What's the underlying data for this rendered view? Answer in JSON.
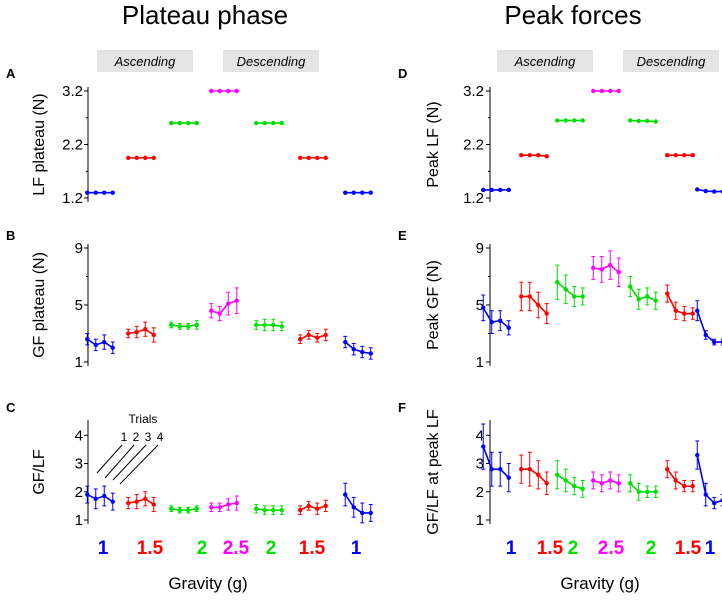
{
  "chart_data": {
    "type": "line",
    "titles": {
      "left": "Plateau phase",
      "right": "Peak forces"
    },
    "phase_labels": {
      "ascending": "Ascending",
      "descending": "Descending"
    },
    "gravity_levels": [
      "1",
      "1.5",
      "2",
      "2.5",
      "2",
      "1.5",
      "1"
    ],
    "gravity_colors": [
      "#0000ff",
      "#ff0000",
      "#00e000",
      "#ff00ff",
      "#00e000",
      "#ff0000",
      "#0000ff"
    ],
    "xlabel": "Gravity (g)",
    "trial_annotation": {
      "title": "Trials",
      "labels": [
        "1",
        "2",
        "3",
        "4"
      ]
    },
    "panels": [
      {
        "letter": "A",
        "ylabel": "LF plateau (N)",
        "ylim": [
          1.2,
          3.2
        ],
        "yticks": [
          "1.2",
          "2.2",
          "3.2"
        ],
        "groups": [
          {
            "mean": [
              1.3,
              1.3,
              1.3,
              1.3
            ],
            "err": [
              0,
              0,
              0,
              0
            ]
          },
          {
            "mean": [
              1.95,
              1.95,
              1.95,
              1.95
            ],
            "err": [
              0,
              0,
              0,
              0
            ]
          },
          {
            "mean": [
              2.6,
              2.6,
              2.6,
              2.6
            ],
            "err": [
              0,
              0,
              0,
              0
            ]
          },
          {
            "mean": [
              3.2,
              3.2,
              3.2,
              3.2
            ],
            "err": [
              0,
              0,
              0,
              0
            ]
          },
          {
            "mean": [
              2.6,
              2.6,
              2.6,
              2.6
            ],
            "err": [
              0,
              0,
              0,
              0
            ]
          },
          {
            "mean": [
              1.95,
              1.95,
              1.95,
              1.95
            ],
            "err": [
              0,
              0,
              0,
              0
            ]
          },
          {
            "mean": [
              1.3,
              1.3,
              1.3,
              1.3
            ],
            "err": [
              0,
              0,
              0,
              0
            ]
          }
        ]
      },
      {
        "letter": "B",
        "ylabel": "GF plateau (N)",
        "ylim": [
          1,
          9
        ],
        "yticks": [
          "1",
          "5",
          "9"
        ],
        "groups": [
          {
            "mean": [
              2.6,
              2.2,
              2.4,
              2.0
            ],
            "err": [
              0.4,
              0.4,
              0.5,
              0.4
            ]
          },
          {
            "mean": [
              3.0,
              3.1,
              3.3,
              2.9
            ],
            "err": [
              0.3,
              0.4,
              0.5,
              0.5
            ]
          },
          {
            "mean": [
              3.6,
              3.5,
              3.5,
              3.6
            ],
            "err": [
              0.2,
              0.2,
              0.2,
              0.3
            ]
          },
          {
            "mean": [
              4.6,
              4.4,
              5.1,
              5.3
            ],
            "err": [
              0.5,
              0.5,
              0.8,
              0.9
            ]
          },
          {
            "mean": [
              3.6,
              3.6,
              3.6,
              3.5
            ],
            "err": [
              0.3,
              0.4,
              0.4,
              0.3
            ]
          },
          {
            "mean": [
              2.6,
              2.9,
              2.7,
              2.9
            ],
            "err": [
              0.3,
              0.3,
              0.3,
              0.4
            ]
          },
          {
            "mean": [
              2.4,
              1.9,
              1.7,
              1.6
            ],
            "err": [
              0.4,
              0.4,
              0.4,
              0.4
            ]
          }
        ]
      },
      {
        "letter": "C",
        "ylabel": "GF/LF",
        "ylim": [
          1,
          4.4
        ],
        "yticks": [
          "1",
          "2",
          "3",
          "4"
        ],
        "groups": [
          {
            "mean": [
              1.9,
              1.75,
              1.85,
              1.65
            ],
            "err": [
              0.3,
              0.35,
              0.35,
              0.3
            ]
          },
          {
            "mean": [
              1.6,
              1.65,
              1.75,
              1.55
            ],
            "err": [
              0.2,
              0.25,
              0.25,
              0.25
            ]
          },
          {
            "mean": [
              1.4,
              1.35,
              1.35,
              1.4
            ],
            "err": [
              0.1,
              0.1,
              0.1,
              0.1
            ]
          },
          {
            "mean": [
              1.45,
              1.45,
              1.55,
              1.6
            ],
            "err": [
              0.15,
              0.15,
              0.2,
              0.25
            ]
          },
          {
            "mean": [
              1.4,
              1.35,
              1.35,
              1.35
            ],
            "err": [
              0.15,
              0.15,
              0.15,
              0.15
            ]
          },
          {
            "mean": [
              1.35,
              1.5,
              1.4,
              1.5
            ],
            "err": [
              0.15,
              0.15,
              0.2,
              0.2
            ]
          },
          {
            "mean": [
              1.9,
              1.45,
              1.25,
              1.25
            ],
            "err": [
              0.4,
              0.35,
              0.35,
              0.3
            ]
          }
        ]
      },
      {
        "letter": "D",
        "ylabel": "Peak LF (N)",
        "ylim": [
          1.2,
          3.2
        ],
        "yticks": [
          "1.2",
          "2.2",
          "3.2"
        ],
        "groups": [
          {
            "mean": [
              1.35,
              1.35,
              1.35,
              1.35
            ],
            "err": [
              0,
              0,
              0,
              0
            ]
          },
          {
            "mean": [
              2.0,
              2.0,
              2.0,
              1.98
            ],
            "err": [
              0,
              0,
              0,
              0
            ]
          },
          {
            "mean": [
              2.65,
              2.65,
              2.65,
              2.65
            ],
            "err": [
              0,
              0,
              0,
              0
            ]
          },
          {
            "mean": [
              3.2,
              3.2,
              3.2,
              3.2
            ],
            "err": [
              0,
              0,
              0,
              0
            ]
          },
          {
            "mean": [
              2.65,
              2.64,
              2.64,
              2.63
            ],
            "err": [
              0,
              0,
              0,
              0
            ]
          },
          {
            "mean": [
              2.0,
              2.0,
              2.0,
              2.0
            ],
            "err": [
              0,
              0,
              0,
              0
            ]
          },
          {
            "mean": [
              1.36,
              1.33,
              1.32,
              1.32
            ],
            "err": [
              0,
              0,
              0,
              0
            ]
          }
        ]
      },
      {
        "letter": "E",
        "ylabel": "Peak GF (N)",
        "ylim": [
          1,
          9
        ],
        "yticks": [
          "1",
          "5",
          "9"
        ],
        "groups": [
          {
            "mean": [
              4.8,
              3.8,
              3.9,
              3.4
            ],
            "err": [
              0.9,
              0.8,
              0.7,
              0.5
            ]
          },
          {
            "mean": [
              5.6,
              5.6,
              5.0,
              4.4
            ],
            "err": [
              1.0,
              1.0,
              0.9,
              0.7
            ]
          },
          {
            "mean": [
              6.6,
              6.1,
              5.6,
              5.6
            ],
            "err": [
              1.2,
              1.0,
              0.7,
              0.6
            ]
          },
          {
            "mean": [
              7.6,
              7.5,
              7.8,
              7.3
            ],
            "err": [
              0.8,
              0.9,
              1.0,
              1.0
            ]
          },
          {
            "mean": [
              6.3,
              5.4,
              5.6,
              5.3
            ],
            "err": [
              0.7,
              0.7,
              0.6,
              0.6
            ]
          },
          {
            "mean": [
              5.8,
              4.6,
              4.4,
              4.4
            ],
            "err": [
              0.6,
              0.6,
              0.5,
              0.4
            ]
          },
          {
            "mean": [
              4.6,
              2.9,
              2.4,
              2.4
            ],
            "err": [
              0.7,
              0.3,
              0.2,
              0.2
            ]
          }
        ]
      },
      {
        "letter": "F",
        "ylabel": "GF/LF at peak LF",
        "ylim": [
          1,
          4.4
        ],
        "yticks": [
          "1",
          "2",
          "3",
          "4"
        ],
        "groups": [
          {
            "mean": [
              3.6,
              2.8,
              2.8,
              2.5
            ],
            "err": [
              0.8,
              0.6,
              0.6,
              0.5
            ]
          },
          {
            "mean": [
              2.8,
              2.8,
              2.6,
              2.3
            ],
            "err": [
              0.5,
              0.6,
              0.5,
              0.4
            ]
          },
          {
            "mean": [
              2.6,
              2.4,
              2.2,
              2.1
            ],
            "err": [
              0.5,
              0.4,
              0.3,
              0.3
            ]
          },
          {
            "mean": [
              2.4,
              2.3,
              2.4,
              2.3
            ],
            "err": [
              0.3,
              0.3,
              0.3,
              0.3
            ]
          },
          {
            "mean": [
              2.3,
              2.0,
              2.0,
              2.0
            ],
            "err": [
              0.3,
              0.3,
              0.2,
              0.2
            ]
          },
          {
            "mean": [
              2.8,
              2.4,
              2.2,
              2.2
            ],
            "err": [
              0.3,
              0.3,
              0.2,
              0.2
            ]
          },
          {
            "mean": [
              3.3,
              1.9,
              1.6,
              1.7
            ],
            "err": [
              0.5,
              0.4,
              0.2,
              0.2
            ]
          }
        ]
      }
    ]
  }
}
